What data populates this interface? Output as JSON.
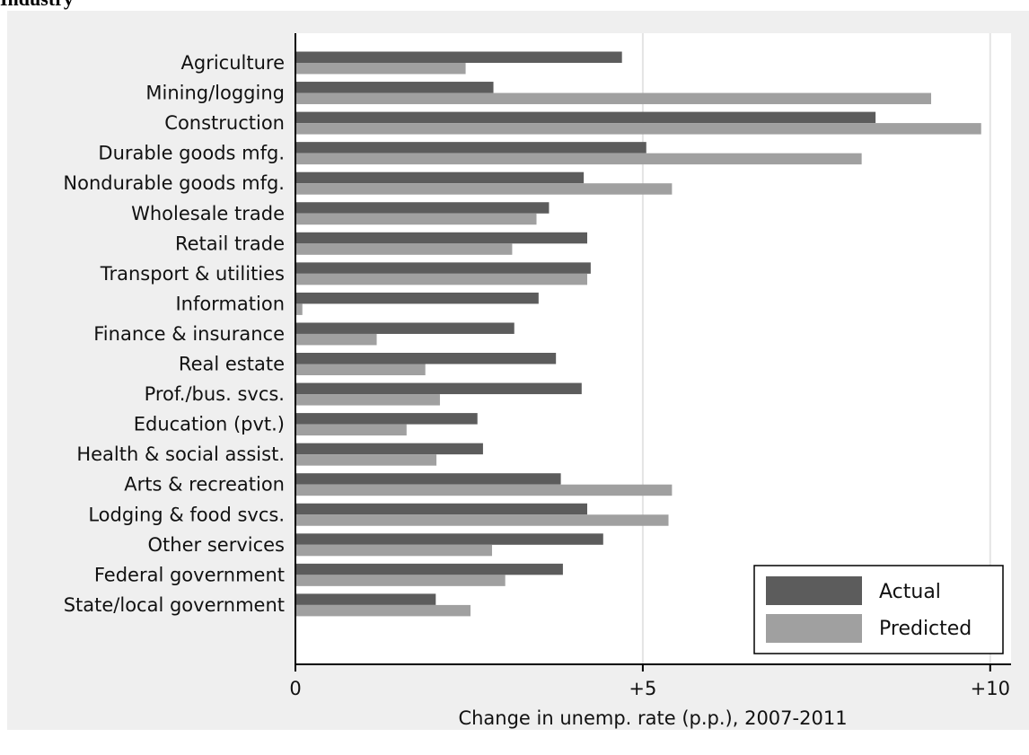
{
  "heading": "Industry",
  "colors": {
    "figure_bg": "#efefef",
    "plot_bg": "#ffffff",
    "actual": "#5c5c5c",
    "predicted": "#a0a0a0",
    "grid": "#e4e4e4",
    "axis": "#000000"
  },
  "chart_data": {
    "type": "bar",
    "orientation": "horizontal",
    "categories": [
      "Agriculture",
      "Mining/logging",
      "Construction",
      "Durable goods mfg.",
      "Nondurable goods mfg.",
      "Wholesale trade",
      "Retail trade",
      "Transport & utilities",
      "Information",
      "Finance & insurance",
      "Real estate",
      "Prof./bus. svcs.",
      "Education (pvt.)",
      "Health & social assist.",
      "Arts & recreation",
      "Lodging & food svcs.",
      "Other services",
      "Federal government",
      "State/local government"
    ],
    "series": [
      {
        "name": "Actual",
        "values": [
          4.7,
          2.85,
          8.35,
          5.05,
          4.15,
          3.65,
          4.2,
          4.25,
          3.5,
          3.15,
          3.75,
          4.12,
          2.62,
          2.7,
          3.82,
          4.2,
          4.43,
          3.85,
          2.02
        ]
      },
      {
        "name": "Predicted",
        "values": [
          2.45,
          9.15,
          9.87,
          8.15,
          5.42,
          3.47,
          3.12,
          4.2,
          0.1,
          1.17,
          1.87,
          2.08,
          1.6,
          2.03,
          5.42,
          5.37,
          2.83,
          3.02,
          2.52
        ]
      }
    ],
    "xlabel": "Change in unemp. rate (p.p.), 2007-2011",
    "xlim": [
      0,
      10.3
    ],
    "xticks": [
      0,
      5,
      10
    ],
    "xtick_labels": [
      "0",
      "+5",
      "+10"
    ],
    "grid": true,
    "legend_position": "bottom-right"
  }
}
